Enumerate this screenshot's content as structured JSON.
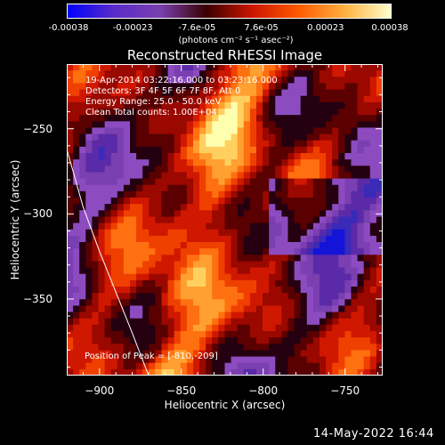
{
  "colorbar": {
    "tick_labels": [
      "-0.00038",
      "-0.00023",
      "-7.6e-05",
      "7.6e-05",
      "0.00023",
      "0.00038"
    ],
    "units": "(photons cm⁻² s⁻¹ asec⁻²)",
    "colors": [
      "#0000ff",
      "#5a2bc8",
      "#7a3fb0",
      "#3a0000",
      "#cc1500",
      "#ff5a00",
      "#ffb040",
      "#ffffcc"
    ]
  },
  "chart_data": {
    "type": "heatmap",
    "title": "Reconstructed RHESSI Image",
    "xlabel": "Heliocentric X (arcsec)",
    "ylabel": "Heliocentric Y (arcsec)",
    "xlim": [
      -920,
      -727
    ],
    "ylim": [
      -395,
      -212
    ],
    "x_ticks": [
      -900,
      -850,
      -800,
      -750
    ],
    "y_ticks": [
      -250,
      -300,
      -350
    ],
    "color_range": [
      -0.00038,
      0.00038
    ],
    "peak": {
      "x": -810,
      "y": -209
    },
    "info_lines": [
      "19-Apr-2014 03:22:16.000 to 03:23:16.000",
      "Detectors: 3F 4F 5F 6F 7F 8F, Att 0",
      "Energy Range: 25.0 - 50.0 keV",
      "Clean     Total counts: 1.00E+04"
    ],
    "peak_label": "Position of Peak = [-810,-209]",
    "limb_points": [
      [
        -920,
        -262
      ],
      [
        -917,
        -272
      ],
      [
        -910,
        -296
      ],
      [
        -900,
        -322
      ],
      [
        -890,
        -346
      ],
      [
        -880,
        -370
      ],
      [
        -870,
        -395
      ]
    ]
  },
  "footer": {
    "timestamp": "14-May-2022 16:44"
  }
}
